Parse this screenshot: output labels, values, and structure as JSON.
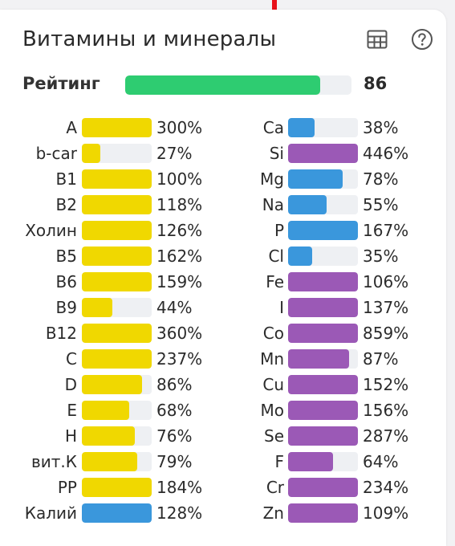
{
  "header": {
    "title": "Витамины и минералы",
    "table_icon": "table-icon",
    "help_icon": "help-circle-icon"
  },
  "rating": {
    "label": "Рейтинг",
    "value": "86",
    "fill_percent": 86,
    "color": "#2ecc71"
  },
  "colors": {
    "vitamin": "#f0d800",
    "mineral_blue": "#3a97dc",
    "mineral_purple": "#9b59b6",
    "track": "#eef0f3",
    "top_marker": "#e8101a"
  },
  "vitamins": [
    {
      "name": "A",
      "value": "300%",
      "fill": 100,
      "color": "vitamin"
    },
    {
      "name": "b-car",
      "value": "27%",
      "fill": 27,
      "color": "vitamin"
    },
    {
      "name": "B1",
      "value": "100%",
      "fill": 100,
      "color": "vitamin"
    },
    {
      "name": "B2",
      "value": "118%",
      "fill": 100,
      "color": "vitamin"
    },
    {
      "name": "Холин",
      "value": "126%",
      "fill": 100,
      "color": "vitamin"
    },
    {
      "name": "B5",
      "value": "162%",
      "fill": 100,
      "color": "vitamin"
    },
    {
      "name": "B6",
      "value": "159%",
      "fill": 100,
      "color": "vitamin"
    },
    {
      "name": "B9",
      "value": "44%",
      "fill": 44,
      "color": "vitamin"
    },
    {
      "name": "B12",
      "value": "360%",
      "fill": 100,
      "color": "vitamin"
    },
    {
      "name": "C",
      "value": "237%",
      "fill": 100,
      "color": "vitamin"
    },
    {
      "name": "D",
      "value": "86%",
      "fill": 86,
      "color": "vitamin"
    },
    {
      "name": "E",
      "value": "68%",
      "fill": 68,
      "color": "vitamin"
    },
    {
      "name": "H",
      "value": "76%",
      "fill": 76,
      "color": "vitamin"
    },
    {
      "name": "вит.К",
      "value": "79%",
      "fill": 79,
      "color": "vitamin"
    },
    {
      "name": "PP",
      "value": "184%",
      "fill": 100,
      "color": "vitamin"
    },
    {
      "name": "Калий",
      "value": "128%",
      "fill": 100,
      "color": "mineral_blue"
    }
  ],
  "minerals": [
    {
      "name": "Ca",
      "value": "38%",
      "fill": 38,
      "color": "mineral_blue"
    },
    {
      "name": "Si",
      "value": "446%",
      "fill": 100,
      "color": "mineral_purple"
    },
    {
      "name": "Mg",
      "value": "78%",
      "fill": 78,
      "color": "mineral_blue"
    },
    {
      "name": "Na",
      "value": "55%",
      "fill": 55,
      "color": "mineral_blue"
    },
    {
      "name": "P",
      "value": "167%",
      "fill": 100,
      "color": "mineral_blue"
    },
    {
      "name": "Cl",
      "value": "35%",
      "fill": 35,
      "color": "mineral_blue"
    },
    {
      "name": "Fe",
      "value": "106%",
      "fill": 100,
      "color": "mineral_purple"
    },
    {
      "name": "I",
      "value": "137%",
      "fill": 100,
      "color": "mineral_purple"
    },
    {
      "name": "Co",
      "value": "859%",
      "fill": 100,
      "color": "mineral_purple"
    },
    {
      "name": "Mn",
      "value": "87%",
      "fill": 87,
      "color": "mineral_purple"
    },
    {
      "name": "Cu",
      "value": "152%",
      "fill": 100,
      "color": "mineral_purple"
    },
    {
      "name": "Mo",
      "value": "156%",
      "fill": 100,
      "color": "mineral_purple"
    },
    {
      "name": "Se",
      "value": "287%",
      "fill": 100,
      "color": "mineral_purple"
    },
    {
      "name": "F",
      "value": "64%",
      "fill": 64,
      "color": "mineral_purple"
    },
    {
      "name": "Cr",
      "value": "234%",
      "fill": 100,
      "color": "mineral_purple"
    },
    {
      "name": "Zn",
      "value": "109%",
      "fill": 100,
      "color": "mineral_purple"
    }
  ]
}
